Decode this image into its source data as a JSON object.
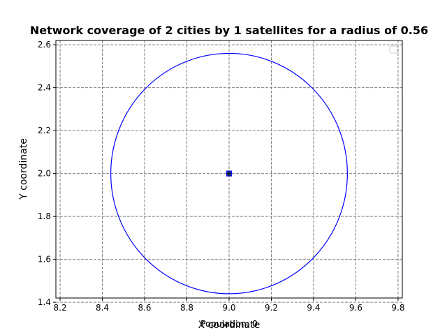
{
  "chart_data": {
    "type": "scatter",
    "title": "Network coverage of 2 cities by 1 satellites for a radius of 0.56",
    "xlabel": "X coordinate",
    "ylabel": "Y coordinate",
    "xlim": [
      8.18,
      9.82
    ],
    "ylim": [
      1.42,
      2.62
    ],
    "xticks": [
      8.2,
      8.4,
      8.6,
      8.8,
      9.0,
      9.2,
      9.4,
      9.6,
      9.8
    ],
    "xtick_labels": [
      "8.2",
      "8.4",
      "8.6",
      "8.8",
      "9.0",
      "9.2",
      "9.4",
      "9.6",
      "9.8"
    ],
    "yticks": [
      1.4,
      1.6,
      1.8,
      2.0,
      2.2,
      2.4,
      2.6
    ],
    "ytick_labels": [
      "1.4",
      "1.6",
      "1.8",
      "2.0",
      "2.2",
      "2.4",
      "2.6"
    ],
    "grid": true,
    "legend": "top-right",
    "cities": [
      {
        "x": 9.0,
        "y": 2.0
      },
      {
        "x": 9.0,
        "y": 2.0
      }
    ],
    "satellites": [
      {
        "x": 9.0,
        "y": 2.0,
        "radius": 0.56
      }
    ],
    "circle_color": "#0000ff",
    "city_color": "#1f3f8f",
    "footer_texts": [
      "Population: 0",
      "Population: 0"
    ]
  }
}
